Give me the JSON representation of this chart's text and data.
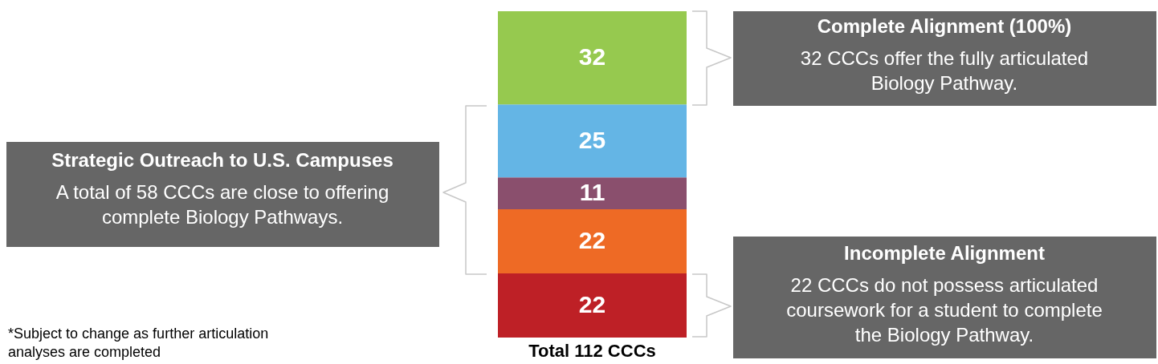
{
  "chart_data": {
    "type": "bar",
    "stacked": true,
    "categories": [
      null
    ],
    "xlabel": "Total 112 CCCs",
    "series": [
      {
        "color": "#be2026",
        "values": [
          22
        ]
      },
      {
        "color": "#ee6a25",
        "values": [
          22
        ]
      },
      {
        "color": "#8a4f6d",
        "values": [
          11
        ]
      },
      {
        "color": "#64b5e5",
        "values": [
          25
        ]
      },
      {
        "color": "#96c94f",
        "values": [
          32
        ]
      }
    ],
    "data_labels": true,
    "annotations": [
      "Complete Alignment (100%)",
      "32 CCCs offer the fully articulated\nBiology Pathway.",
      "Strategic Outreach to U.S. Campuses",
      "A total of 58 CCCs are close to offering\ncomplete Biology Pathways.",
      "Incomplete Alignment",
      "22 CCCs do not possess articulated\ncoursework for a student to complete\nthe Biology Pathway.",
      "*Subject to change as further articulation\nanalyses are completed"
    ]
  }
}
